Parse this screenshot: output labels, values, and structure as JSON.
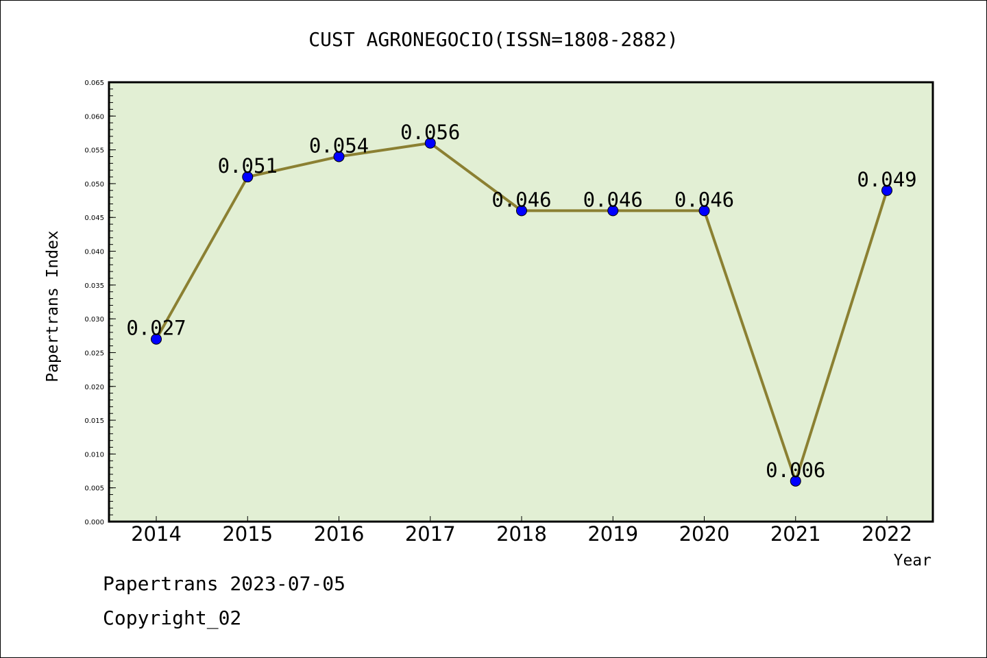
{
  "chart_data": {
    "type": "line",
    "title": "CUST AGRONEGOCIO(ISSN=1808-2882)",
    "xlabel": "Year",
    "ylabel": "Papertrans Index",
    "categories": [
      "2014",
      "2015",
      "2016",
      "2017",
      "2018",
      "2019",
      "2020",
      "2021",
      "2022"
    ],
    "series": [
      {
        "values": [
          0.027,
          0.051,
          0.054,
          0.056,
          0.046,
          0.046,
          0.046,
          0.006,
          0.049
        ]
      }
    ],
    "data_labels": [
      "0.027",
      "0.051",
      "0.054",
      "0.056",
      "0.046",
      "0.046",
      "0.046",
      "0.006",
      "0.049"
    ],
    "ylim": [
      0,
      0.065
    ],
    "yticks": [
      "0.000",
      "0.005",
      "0.010",
      "0.015",
      "0.020",
      "0.025",
      "0.030",
      "0.035",
      "0.040",
      "0.045",
      "0.050",
      "0.055",
      "0.060",
      "0.065"
    ],
    "grid": false,
    "colors": {
      "plot_background": "#e2efd4",
      "line": "#8b8032",
      "marker": "#0000ff"
    }
  },
  "footer": {
    "line1": "Papertrans 2023-07-05",
    "line2": "Copyright_02"
  }
}
